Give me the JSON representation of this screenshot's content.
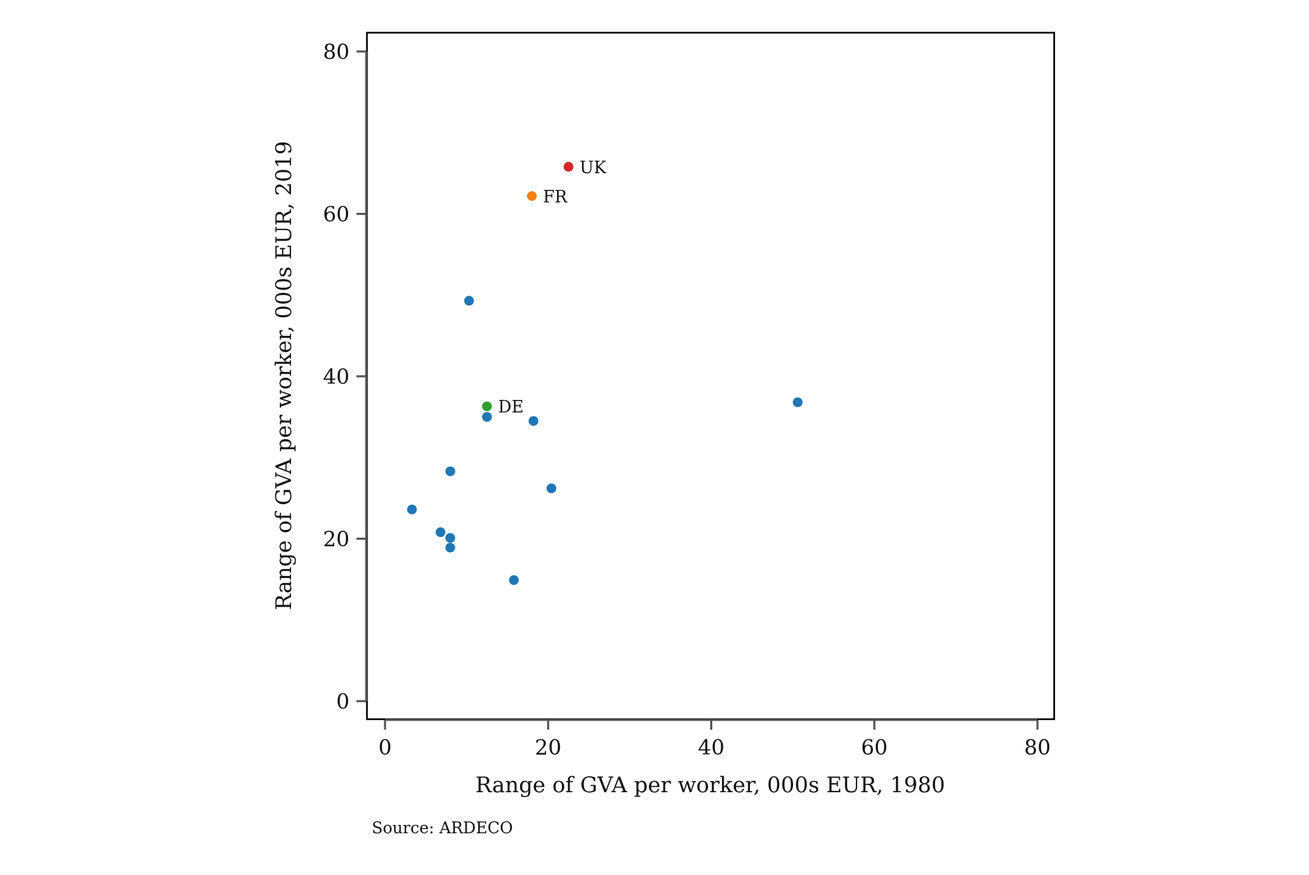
{
  "chart_data": {
    "type": "scatter",
    "xlabel": "Range of GVA per worker, 000s EUR, 1980",
    "ylabel": "Range of GVA per worker, 000s EUR, 2019",
    "xlim": [
      0,
      80
    ],
    "ylim": [
      0,
      80
    ],
    "xticks": [
      0,
      20,
      40,
      60,
      80
    ],
    "yticks": [
      0,
      20,
      40,
      60,
      80
    ],
    "grid": false,
    "default_color": "#1f77b4",
    "points": [
      {
        "x": 22.5,
        "y": 65.8,
        "label": "UK",
        "color": "#d62728"
      },
      {
        "x": 18.0,
        "y": 62.2,
        "label": "FR",
        "color": "#ff7f0e"
      },
      {
        "x": 12.5,
        "y": 36.3,
        "label": "DE",
        "color": "#2ca02c"
      },
      {
        "x": 10.3,
        "y": 49.3
      },
      {
        "x": 12.5,
        "y": 35.0
      },
      {
        "x": 18.2,
        "y": 34.5
      },
      {
        "x": 50.6,
        "y": 36.8
      },
      {
        "x": 8.0,
        "y": 28.3
      },
      {
        "x": 20.4,
        "y": 26.2
      },
      {
        "x": 3.3,
        "y": 23.6
      },
      {
        "x": 6.8,
        "y": 20.8
      },
      {
        "x": 8.0,
        "y": 20.1
      },
      {
        "x": 8.0,
        "y": 18.9
      },
      {
        "x": 15.8,
        "y": 14.9
      }
    ]
  },
  "source": "Source: ARDECO"
}
